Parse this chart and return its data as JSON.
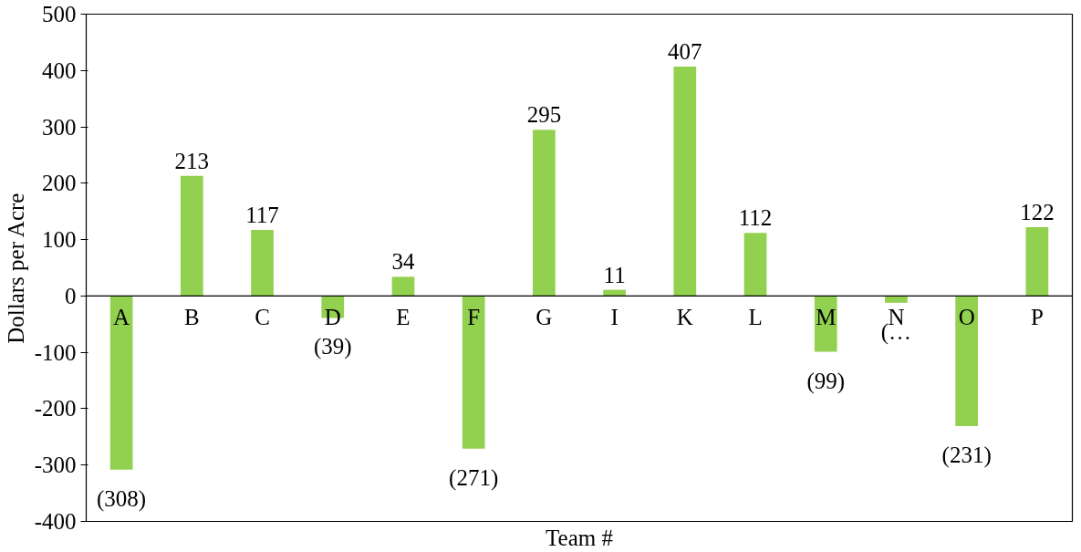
{
  "chart_data": {
    "type": "bar",
    "xlabel": "Team #",
    "ylabel": "Dollars per Acre",
    "categories": [
      "A",
      "B",
      "C",
      "D",
      "E",
      "F",
      "G",
      "I",
      "K",
      "L",
      "M",
      "N",
      "O",
      "P"
    ],
    "values": [
      -308,
      213,
      117,
      -39,
      34,
      -271,
      295,
      11,
      407,
      112,
      -99,
      -12,
      -231,
      122
    ],
    "value_labels": [
      "(308)",
      "213",
      "117",
      "(39)",
      "34",
      "(271)",
      "295",
      "11",
      "407",
      "112",
      "(99)",
      "(…",
      "(231)",
      "122"
    ],
    "color": "#92d050",
    "ylim": [
      -400,
      500
    ],
    "yticks": [
      -400,
      -300,
      -200,
      -100,
      0,
      100,
      200,
      300,
      400,
      500
    ],
    "grid": false
  }
}
